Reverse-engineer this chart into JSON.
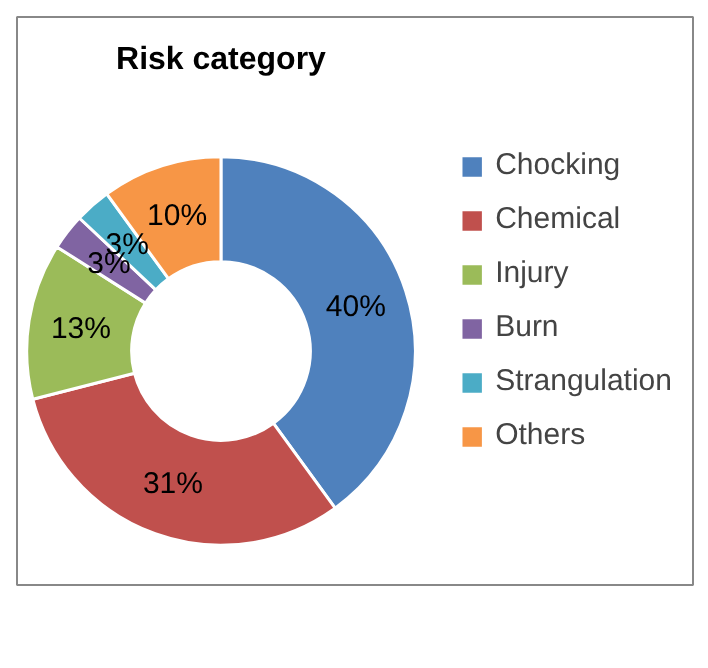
{
  "chart_data": {
    "type": "donut",
    "title": "Risk category",
    "categories": [
      "Chocking",
      "Chemical",
      "Injury",
      "Burn",
      "Strangulation",
      "Others"
    ],
    "values": [
      40,
      31,
      13,
      3,
      3,
      10
    ],
    "colors": [
      "#4f81bd",
      "#c0504d",
      "#9bbb59",
      "#8064a2",
      "#4bacc6",
      "#f79646"
    ],
    "value_labels": [
      "40%",
      "31%",
      "13%",
      "3%",
      "3%",
      "10%"
    ],
    "legend": "right"
  }
}
